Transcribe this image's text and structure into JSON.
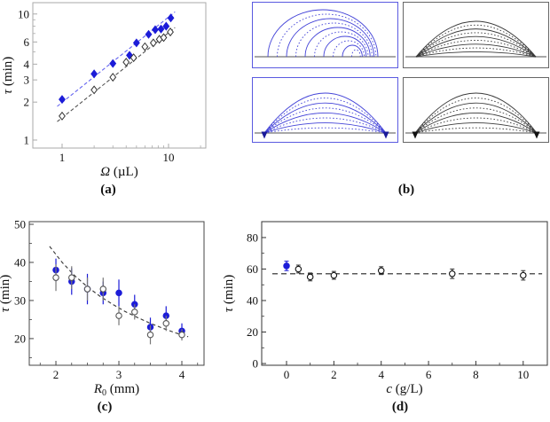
{
  "figure": {
    "captions": {
      "a": "(a)",
      "b": "(b)",
      "c": "(c)",
      "d": "(d)"
    },
    "colors": {
      "blue_marker": "#1c1cd8",
      "blue_marker_dark": "#1a1a99",
      "blue_fit": "#6464f0",
      "blue_curve": "#4343d8",
      "black_curve": "#3a3a3a",
      "black_fit": "#555555",
      "open_stroke": "#333333",
      "baseline": "#8a8a8a",
      "frame_a": "#aaaaaa",
      "frame_c": "#444444",
      "frame_d": "#333333"
    }
  },
  "chart_data": [
    {
      "id": "a",
      "type": "scatter",
      "x_scale": "log",
      "y_scale": "log",
      "xlabel": {
        "var": "Ω",
        "unit": " (µL)"
      },
      "ylabel": {
        "var": "τ",
        "unit": " (min)"
      },
      "xlim": [
        0.531,
        22.4
      ],
      "ylim": [
        0.864,
        12.3
      ],
      "x_ticks": [
        1,
        10
      ],
      "x_minor": [
        2,
        3,
        4,
        5,
        6,
        7,
        8,
        9,
        20
      ],
      "y_ticks": [
        1,
        2,
        3,
        4,
        6,
        10
      ],
      "y_minor": [
        5,
        7,
        8,
        9
      ],
      "series": [
        {
          "name": "blue-filled-diamonds",
          "marker": "diamond",
          "fill": "solid",
          "color": "#1c1cd8",
          "points": [
            [
              1,
              2.1,
              0.12
            ],
            [
              2,
              3.35,
              0.15
            ],
            [
              3,
              4.05,
              0.15
            ],
            [
              4.3,
              4.7,
              0.2
            ],
            [
              5,
              5.9,
              0.2
            ],
            [
              6.5,
              6.9,
              0.25
            ],
            [
              7.5,
              7.5,
              0.25
            ],
            [
              8.5,
              7.6,
              0.25
            ],
            [
              9.5,
              8.0,
              0.25
            ],
            [
              10.5,
              9.3,
              0.3
            ]
          ]
        },
        {
          "name": "open-diamonds",
          "marker": "diamond",
          "fill": "open",
          "color": "#222222",
          "stroke": "#333333",
          "points": [
            [
              1,
              1.55
            ],
            [
              2,
              2.5
            ],
            [
              3,
              3.15
            ],
            [
              4,
              4.15
            ],
            [
              4.7,
              4.5
            ],
            [
              6,
              5.5
            ],
            [
              7.2,
              5.9
            ],
            [
              8.2,
              6.3
            ],
            [
              9,
              6.5
            ],
            [
              10.4,
              7.2
            ]
          ]
        }
      ],
      "fits": [
        {
          "name": "blue-power-law-fit",
          "color": "#6464f0",
          "dash": "4 2.5",
          "points": [
            [
              0.9,
              1.85
            ],
            [
              11.5,
              10.4
            ]
          ]
        },
        {
          "name": "black-power-law-fit",
          "color": "#555555",
          "dash": "4 2.5",
          "points": [
            [
              0.9,
              1.4
            ],
            [
              11.5,
              7.8
            ]
          ]
        }
      ]
    },
    {
      "id": "b",
      "type": "drop-profile-panels",
      "boxes": [
        {
          "id": "b1",
          "pos": "top-left",
          "color": "blue",
          "mode": "receding-tall",
          "n_curves": 10,
          "markers": false,
          "baseline_y": 61
        },
        {
          "id": "b2",
          "pos": "top-right",
          "color": "black",
          "mode": "pinned-cap",
          "n_curves": 9,
          "markers": false,
          "baseline_y": 61
        },
        {
          "id": "b3",
          "pos": "bottom-left",
          "color": "blue",
          "mode": "pinned-flat",
          "n_curves": 8,
          "markers": true,
          "baseline_y": 62
        },
        {
          "id": "b4",
          "pos": "bottom-right",
          "color": "black",
          "mode": "pinned-flat",
          "n_curves": 8,
          "markers": true,
          "baseline_y": 62
        }
      ]
    },
    {
      "id": "c",
      "type": "scatter",
      "x_scale": "linear",
      "y_scale": "linear",
      "xlabel": {
        "var": "R",
        "sub": "0",
        "unit": " (mm)"
      },
      "ylabel": {
        "var": "τ",
        "unit": " (min)"
      },
      "xlim": [
        1.577,
        4.352
      ],
      "ylim": [
        13.0,
        50.7
      ],
      "x_ticks": [
        2,
        3,
        4
      ],
      "x_minor": [
        1.75,
        2.25,
        2.5,
        2.75,
        3.25,
        3.5,
        3.75,
        4.25
      ],
      "y_ticks": [
        20,
        30,
        40,
        50
      ],
      "y_minor": [
        15,
        25,
        35,
        45
      ],
      "series": [
        {
          "name": "blue-filled-circles",
          "marker": "circle",
          "fill": "solid",
          "color": "#1c1cd8",
          "points": [
            [
              2,
              38,
              3
            ],
            [
              2.25,
              35,
              3.5
            ],
            [
              2.5,
              33,
              4
            ],
            [
              2.75,
              32,
              3
            ],
            [
              3,
              32,
              3.5
            ],
            [
              3.25,
              29,
              2.5
            ],
            [
              3.5,
              23,
              2.5
            ],
            [
              3.75,
              26,
              2.5
            ],
            [
              4,
              22,
              2
            ]
          ]
        },
        {
          "name": "open-circles",
          "marker": "circle",
          "fill": "open",
          "color": "#555555",
          "stroke": "#555555",
          "err_color": "#777777",
          "points": [
            [
              2,
              36,
              3.5
            ],
            [
              2.25,
              36,
              3
            ],
            [
              2.5,
              33,
              3
            ],
            [
              2.75,
              33,
              3
            ],
            [
              3,
              26,
              2.5
            ],
            [
              3.25,
              27,
              2
            ],
            [
              3.5,
              21,
              2.5
            ],
            [
              3.75,
              24,
              2
            ],
            [
              4,
              21,
              1.5
            ]
          ]
        }
      ],
      "fits": [
        {
          "name": "inverse-R-fit",
          "color": "#333333",
          "dash": "4 3",
          "points": [
            [
              1.9,
              44.2
            ],
            [
              2.1,
              40.0
            ],
            [
              2.3,
              36.5
            ],
            [
              2.5,
              33.6
            ],
            [
              2.7,
              31.1
            ],
            [
              2.9,
              29.0
            ],
            [
              3.1,
              27.1
            ],
            [
              3.3,
              25.5
            ],
            [
              3.5,
              24.0
            ],
            [
              3.7,
              22.7
            ],
            [
              3.9,
              21.5
            ],
            [
              4.1,
              20.5
            ]
          ]
        }
      ]
    },
    {
      "id": "d",
      "type": "scatter",
      "x_scale": "linear",
      "y_scale": "linear",
      "xlabel": {
        "var": "c",
        "unit": " (g/L)"
      },
      "ylabel": {
        "var": "τ",
        "unit": " (min)"
      },
      "xlim": [
        -1.05,
        11.02
      ],
      "ylim": [
        -1.1,
        90.1
      ],
      "x_ticks": [
        0,
        2,
        4,
        6,
        8,
        10
      ],
      "x_minor": [
        1,
        3,
        5,
        7,
        9
      ],
      "y_ticks": [
        0,
        20,
        40,
        60,
        80
      ],
      "y_minor": [
        10,
        30,
        50,
        70
      ],
      "series": [
        {
          "name": "blue-filled-circle",
          "marker": "circle",
          "fill": "solid",
          "color": "#1c1cd8",
          "caps": true,
          "points": [
            [
              0,
              62,
              3
            ]
          ]
        },
        {
          "name": "open-circles",
          "marker": "circle",
          "fill": "open",
          "color": "#111111",
          "stroke": "#111111",
          "err_color": "#333333",
          "caps": true,
          "points": [
            [
              0.5,
              60,
              2.5
            ],
            [
              1,
              55,
              2.5
            ],
            [
              2,
              56,
              2.5
            ],
            [
              4,
              59,
              2.5
            ],
            [
              7,
              57,
              3
            ],
            [
              10,
              56,
              3
            ]
          ]
        }
      ],
      "fits": [
        {
          "name": "mean-tau-line",
          "color": "#222222",
          "dash": "6 4",
          "points": [
            [
              -0.6,
              57
            ],
            [
              10.8,
              57
            ]
          ]
        }
      ]
    }
  ]
}
